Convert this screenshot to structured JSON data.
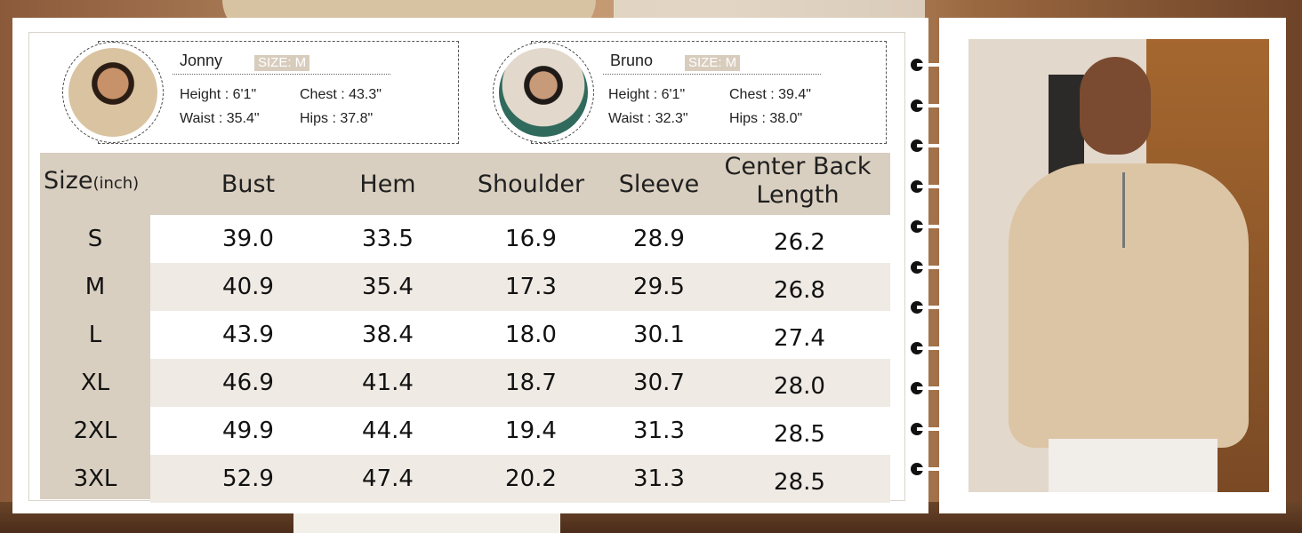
{
  "models": [
    {
      "name": "Jonny",
      "size_tag": "SIZE: M",
      "height": "Height : 6'1\"",
      "chest": "Chest : 43.3\"",
      "waist": "Waist : 35.4\"",
      "hips": "Hips : 37.8\""
    },
    {
      "name": "Bruno",
      "size_tag": "SIZE: M",
      "height": "Height : 6'1\"",
      "chest": "Chest : 39.4\"",
      "waist": "Waist : 32.3\"",
      "hips": "Hips : 38.0\""
    }
  ],
  "table": {
    "header_size": "Size",
    "header_unit": "(inch)",
    "header_bust": "Bust",
    "header_hem": "Hem",
    "header_shoulder": "Shoulder",
    "header_sleeve": "Sleeve",
    "header_cbl_1": "Center Back",
    "header_cbl_2": "Length",
    "rows": [
      {
        "size": "S",
        "bust": "39.0",
        "hem": "33.5",
        "shoulder": "16.9",
        "sleeve": "28.9",
        "cbl": "26.2"
      },
      {
        "size": "M",
        "bust": "40.9",
        "hem": "35.4",
        "shoulder": "17.3",
        "sleeve": "29.5",
        "cbl": "26.8"
      },
      {
        "size": "L",
        "bust": "43.9",
        "hem": "38.4",
        "shoulder": "18.0",
        "sleeve": "30.1",
        "cbl": "27.4"
      },
      {
        "size": "XL",
        "bust": "46.9",
        "hem": "41.4",
        "shoulder": "18.7",
        "sleeve": "30.7",
        "cbl": "28.0"
      },
      {
        "size": "2XL",
        "bust": "49.9",
        "hem": "44.4",
        "shoulder": "19.4",
        "sleeve": "31.3",
        "cbl": "28.5"
      },
      {
        "size": "3XL",
        "bust": "52.9",
        "hem": "47.4",
        "shoulder": "20.2",
        "sleeve": "31.3",
        "cbl": "28.5"
      }
    ]
  },
  "colors": {
    "header_band": "#d9cfc0",
    "row_tint": "#efeae4",
    "size_tag_bg": "#d8ccbd"
  }
}
